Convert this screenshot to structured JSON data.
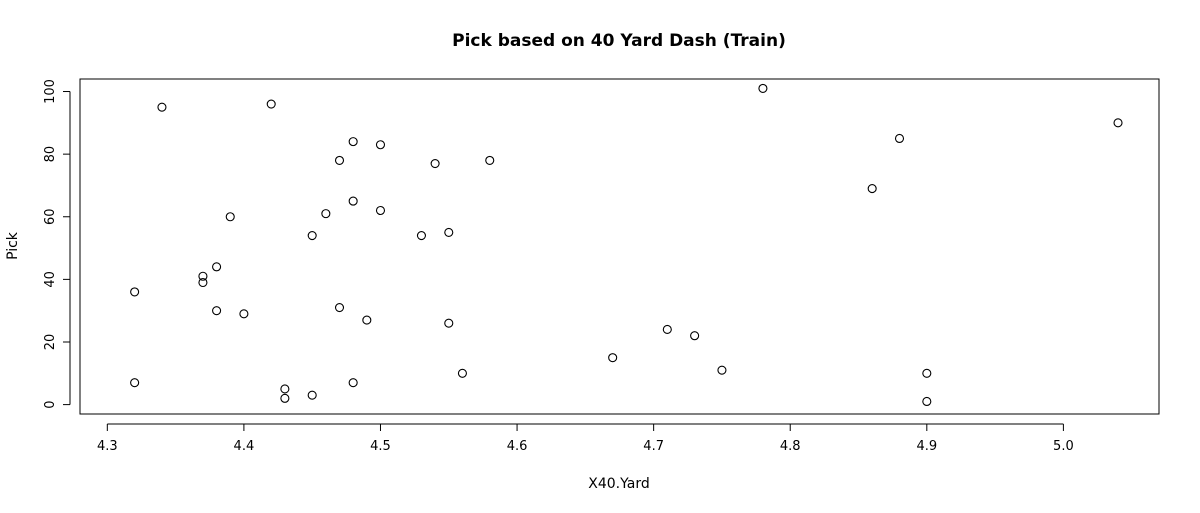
{
  "chart_data": {
    "type": "scatter",
    "title": "Pick based on 40 Yard Dash (Train)",
    "xlabel": "X40.Yard",
    "ylabel": "Pick",
    "xlim": [
      4.28,
      5.07
    ],
    "ylim": [
      -3,
      104
    ],
    "x_ticks": [
      4.3,
      4.4,
      4.5,
      4.6,
      4.7,
      4.8,
      4.9,
      5.0
    ],
    "x_tick_labels": [
      "4.3",
      "4.4",
      "4.5",
      "4.6",
      "4.7",
      "4.8",
      "4.9",
      "5.0"
    ],
    "y_ticks": [
      0,
      20,
      40,
      60,
      80,
      100
    ],
    "y_tick_labels": [
      "0",
      "20",
      "40",
      "60",
      "80",
      "100"
    ],
    "grid": false,
    "legend": "none",
    "points": [
      {
        "x": 4.32,
        "y": 7
      },
      {
        "x": 4.32,
        "y": 36
      },
      {
        "x": 4.34,
        "y": 95
      },
      {
        "x": 4.37,
        "y": 41
      },
      {
        "x": 4.37,
        "y": 39
      },
      {
        "x": 4.38,
        "y": 44
      },
      {
        "x": 4.38,
        "y": 30
      },
      {
        "x": 4.39,
        "y": 60
      },
      {
        "x": 4.4,
        "y": 29
      },
      {
        "x": 4.42,
        "y": 96
      },
      {
        "x": 4.43,
        "y": 5
      },
      {
        "x": 4.43,
        "y": 2
      },
      {
        "x": 4.45,
        "y": 54
      },
      {
        "x": 4.45,
        "y": 3
      },
      {
        "x": 4.46,
        "y": 61
      },
      {
        "x": 4.47,
        "y": 78
      },
      {
        "x": 4.47,
        "y": 31
      },
      {
        "x": 4.48,
        "y": 84
      },
      {
        "x": 4.48,
        "y": 65
      },
      {
        "x": 4.48,
        "y": 7
      },
      {
        "x": 4.49,
        "y": 27
      },
      {
        "x": 4.5,
        "y": 83
      },
      {
        "x": 4.5,
        "y": 62
      },
      {
        "x": 4.53,
        "y": 54
      },
      {
        "x": 4.54,
        "y": 77
      },
      {
        "x": 4.55,
        "y": 55
      },
      {
        "x": 4.55,
        "y": 26
      },
      {
        "x": 4.56,
        "y": 10
      },
      {
        "x": 4.58,
        "y": 78
      },
      {
        "x": 4.67,
        "y": 15
      },
      {
        "x": 4.71,
        "y": 24
      },
      {
        "x": 4.73,
        "y": 22
      },
      {
        "x": 4.75,
        "y": 11
      },
      {
        "x": 4.78,
        "y": 101
      },
      {
        "x": 4.86,
        "y": 69
      },
      {
        "x": 4.88,
        "y": 85
      },
      {
        "x": 4.9,
        "y": 10
      },
      {
        "x": 4.9,
        "y": 1
      },
      {
        "x": 5.04,
        "y": 90
      }
    ]
  }
}
